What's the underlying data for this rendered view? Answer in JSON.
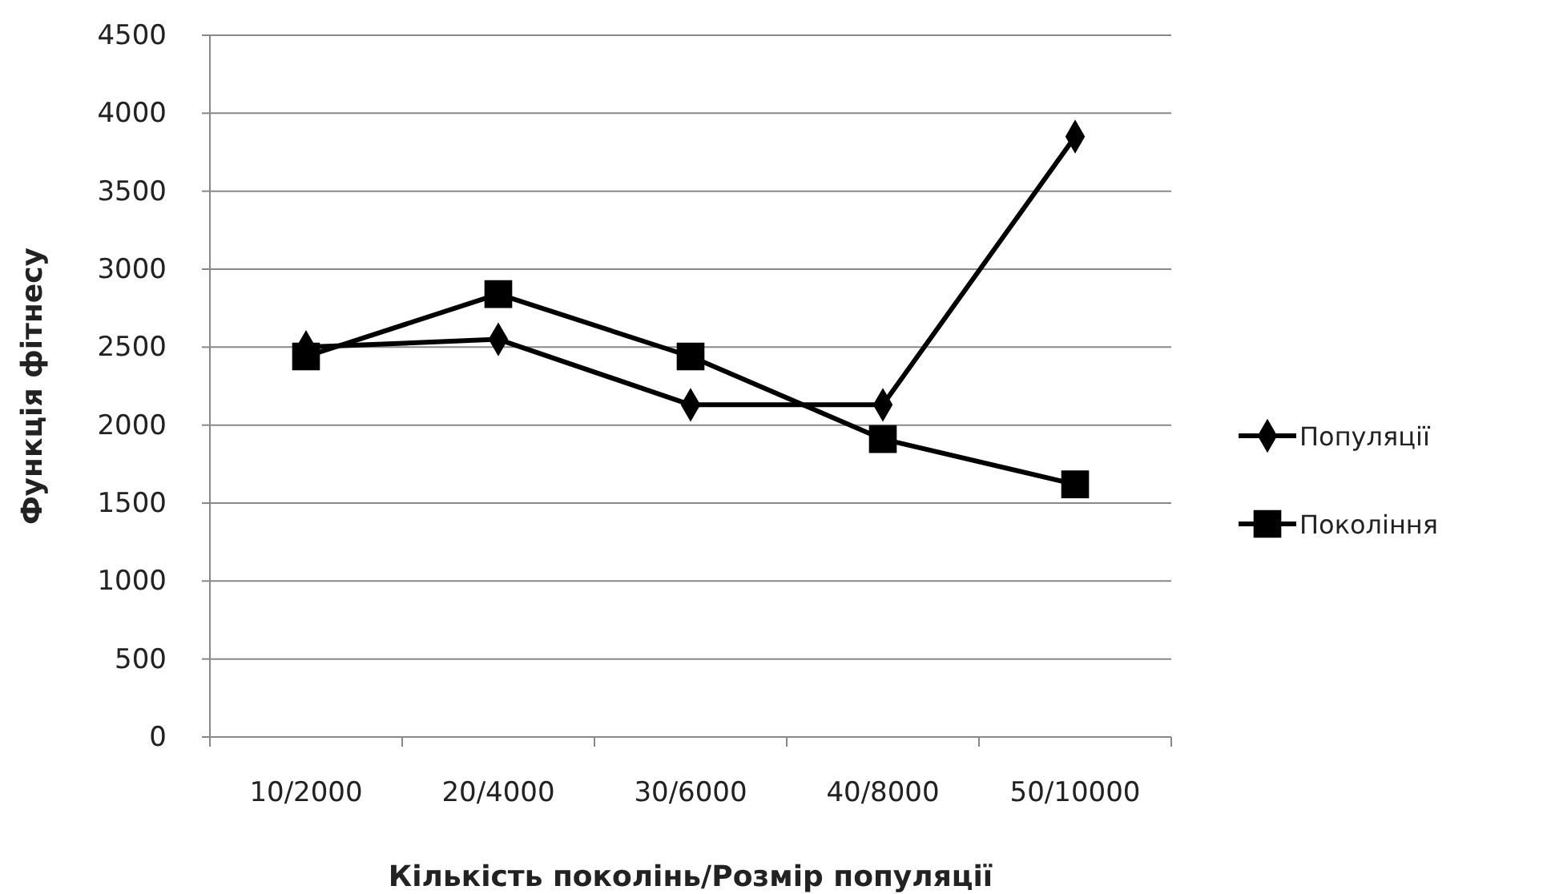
{
  "chart_data": {
    "type": "line",
    "xlabel": "Кількість поколінь/Розмір популяції",
    "ylabel": "Функція фітнесу",
    "categories": [
      "10/2000",
      "20/4000",
      "30/6000",
      "40/8000",
      "50/10000"
    ],
    "series": [
      {
        "name": "Популяції",
        "color": "#000000",
        "marker": "diamond",
        "values": [
          2500,
          2550,
          2130,
          2130,
          3850
        ]
      },
      {
        "name": "Покоління",
        "color": "#000000",
        "marker": "square",
        "values": [
          2440,
          2840,
          2440,
          1910,
          1620
        ]
      }
    ],
    "ylim": [
      0,
      4500
    ],
    "yticks": [
      0,
      500,
      1000,
      1500,
      2000,
      2500,
      3000,
      3500,
      4000,
      4500
    ],
    "grid": "y",
    "legend": "right",
    "line_style": "solid"
  }
}
